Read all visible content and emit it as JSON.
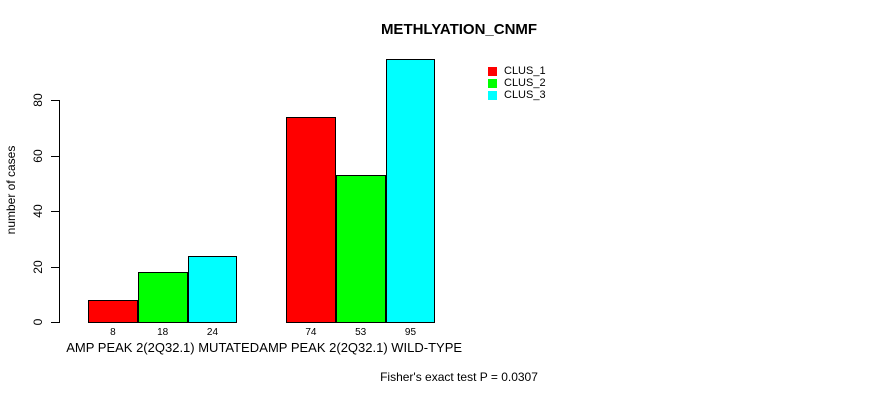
{
  "chart_data": {
    "type": "bar",
    "title": "METHLYATION_CNMF",
    "ylabel": "number of cases",
    "xlabel": "",
    "ylim": [
      0,
      95
    ],
    "yticks": [
      0,
      20,
      40,
      60,
      80
    ],
    "grid": false,
    "legend_position": "top-right",
    "show_bar_values": true,
    "categories": [
      "AMP PEAK 2(2Q32.1) MUTATED",
      "AMP PEAK 2(2Q32.1) WILD-TYPE"
    ],
    "series": [
      {
        "name": "CLUS_1",
        "color": "#ff0000",
        "values": [
          8,
          74
        ]
      },
      {
        "name": "CLUS_2",
        "color": "#00ff00",
        "values": [
          18,
          53
        ]
      },
      {
        "name": "CLUS_3",
        "color": "#00ffff",
        "values": [
          24,
          95
        ]
      }
    ],
    "annotation": "Fisher's exact test P = 0.0307",
    "axis_color": "#000000",
    "bar_border_color": "#000000",
    "background_color": "#ffffff"
  }
}
